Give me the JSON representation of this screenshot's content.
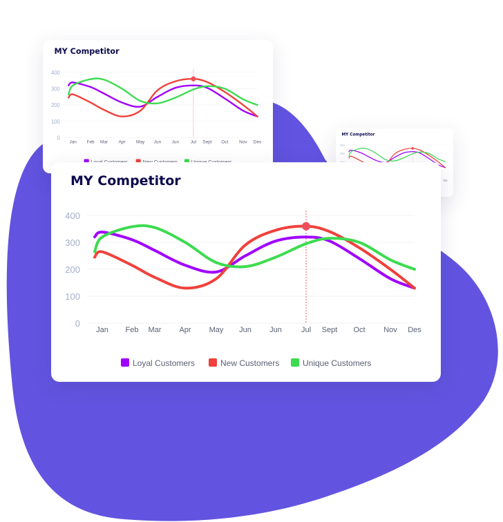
{
  "colors": {
    "blob": "#6254E0",
    "title": "#0D0B4D",
    "axis_text": "#A3AECB",
    "month_text": "#5A5F73",
    "grid": "#F1F2F6",
    "highlight": "#F0505A"
  },
  "chart_data": [
    {
      "type": "line",
      "title": "MY Competitor",
      "categories": [
        "Jan",
        "Feb",
        "Mar",
        "Apr",
        "May",
        "Jun",
        "Jun",
        "Jul",
        "Sept",
        "Oct",
        "Nov",
        "Des"
      ],
      "yticks": [
        "0",
        "100",
        "200",
        "300",
        "400"
      ],
      "ylim": [
        0,
        400
      ],
      "grid": true,
      "legend": "bottom",
      "highlight": {
        "category": "Jul",
        "series": "New Customers",
        "value": 360
      },
      "series": [
        {
          "name": "Loyal Customers",
          "color": "#A000FF",
          "values": [
            338,
            310,
            270,
            215,
            190,
            250,
            305,
            320,
            305,
            240,
            165,
            130
          ]
        },
        {
          "name": "New Customers",
          "color": "#F0413C",
          "values": [
            265,
            215,
            170,
            130,
            165,
            290,
            345,
            360,
            340,
            280,
            200,
            130
          ]
        },
        {
          "name": "Unique Customers",
          "color": "#3DDB50",
          "values": [
            320,
            358,
            355,
            300,
            225,
            210,
            245,
            295,
            315,
            300,
            235,
            200
          ]
        }
      ]
    }
  ]
}
